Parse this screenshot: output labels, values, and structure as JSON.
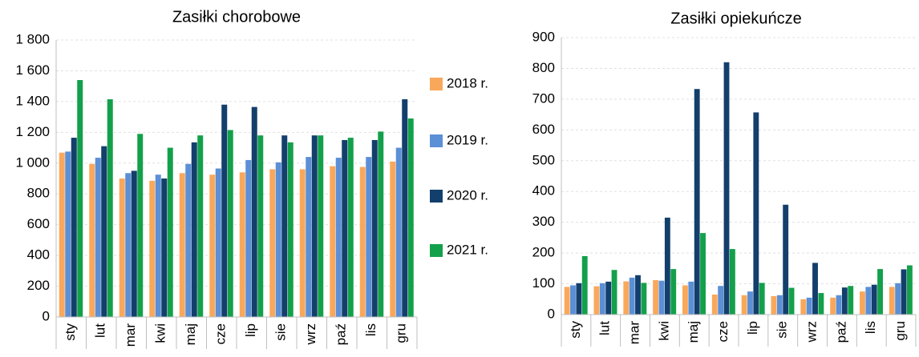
{
  "chart_data": [
    {
      "type": "bar",
      "title": "Zasiłki chorobowe",
      "categories": [
        "sty",
        "lut",
        "mar",
        "kwi",
        "maj",
        "cze",
        "lip",
        "sie",
        "wrz",
        "paź",
        "lis",
        "gru"
      ],
      "series": [
        {
          "name": "2018 r.",
          "color": "#f9a85b",
          "values": [
            1068,
            995,
            900,
            885,
            935,
            925,
            940,
            960,
            960,
            980,
            975,
            1010
          ]
        },
        {
          "name": "2019 r.",
          "color": "#5b8fd6",
          "values": [
            1075,
            1035,
            935,
            925,
            995,
            965,
            1020,
            1005,
            1040,
            1035,
            1040,
            1100
          ]
        },
        {
          "name": "2020 r.",
          "color": "#133f6c",
          "values": [
            1165,
            1110,
            950,
            900,
            1135,
            1380,
            1365,
            1180,
            1180,
            1150,
            1150,
            1415
          ]
        },
        {
          "name": "2021 r.",
          "color": "#13a04b",
          "values": [
            1540,
            1415,
            1190,
            1100,
            1180,
            1215,
            1180,
            1135,
            1180,
            1165,
            1205,
            1290
          ]
        }
      ],
      "ylim": [
        0,
        1800
      ],
      "yticks": [
        0,
        200,
        400,
        600,
        800,
        {
          "value": 1000,
          "label": "1 000"
        },
        {
          "value": 1200,
          "label": "1 200"
        },
        {
          "value": 1400,
          "label": "1 400"
        },
        {
          "value": 1600,
          "label": "1 600"
        },
        {
          "value": 1800,
          "label": "1 800"
        }
      ],
      "grid": true
    },
    {
      "type": "bar",
      "title": "Zasiłki opiekuńcze",
      "categories": [
        "sty",
        "lut",
        "mar",
        "kwi",
        "maj",
        "cze",
        "lip",
        "sie",
        "wrz",
        "paź",
        "lis",
        "gru"
      ],
      "series": [
        {
          "color": "#f9a85b",
          "values": [
            90,
            92,
            108,
            112,
            95,
            65,
            63,
            60,
            50,
            55,
            75,
            90
          ]
        },
        {
          "color": "#5b8fd6",
          "values": [
            95,
            102,
            120,
            110,
            107,
            93,
            75,
            63,
            55,
            63,
            90,
            102
          ]
        },
        {
          "color": "#133f6c",
          "values": [
            102,
            107,
            128,
            315,
            733,
            820,
            657,
            357,
            168,
            88,
            97,
            147
          ]
        },
        {
          "color": "#13a04b",
          "values": [
            190,
            145,
            103,
            148,
            265,
            213,
            103,
            87,
            70,
            93,
            148,
            160
          ]
        }
      ],
      "ylim": [
        0,
        900
      ],
      "yticks": [
        0,
        100,
        200,
        300,
        400,
        500,
        600,
        700,
        800,
        900
      ],
      "grid": true
    }
  ]
}
